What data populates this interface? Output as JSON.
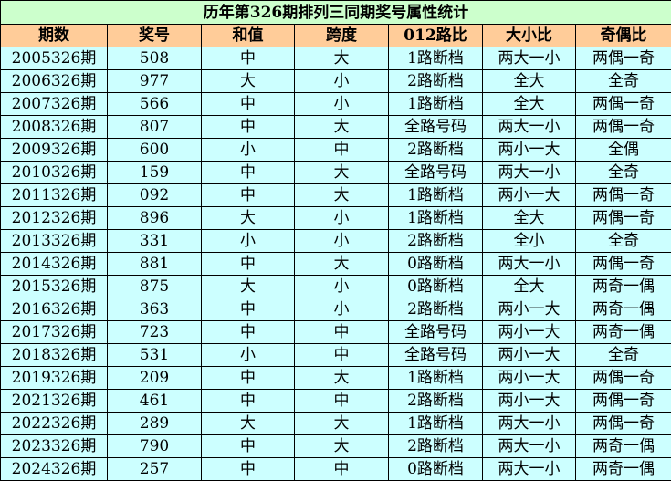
{
  "title": "历年第326期排列三同期奖号属性统计",
  "headers": [
    "期数",
    "奖号",
    "和值",
    "跨度",
    "012路比",
    "大小比",
    "奇偶比"
  ],
  "rows": [
    [
      "2005326期",
      "508",
      "中",
      "大",
      "1路断档",
      "两大一小",
      "两偶一奇"
    ],
    [
      "2006326期",
      "977",
      "大",
      "小",
      "2路断档",
      "全大",
      "全奇"
    ],
    [
      "2007326期",
      "566",
      "中",
      "小",
      "1路断档",
      "全大",
      "两偶一奇"
    ],
    [
      "2008326期",
      "807",
      "中",
      "大",
      "全路号码",
      "两大一小",
      "两偶一奇"
    ],
    [
      "2009326期",
      "600",
      "小",
      "中",
      "2路断档",
      "两小一大",
      "全偶"
    ],
    [
      "2010326期",
      "159",
      "中",
      "大",
      "全路号码",
      "两大一小",
      "全奇"
    ],
    [
      "2011326期",
      "092",
      "中",
      "大",
      "1路断档",
      "两小一大",
      "两偶一奇"
    ],
    [
      "2012326期",
      "896",
      "大",
      "小",
      "1路断档",
      "全大",
      "两偶一奇"
    ],
    [
      "2013326期",
      "331",
      "小",
      "小",
      "2路断档",
      "全小",
      "全奇"
    ],
    [
      "2014326期",
      "881",
      "中",
      "大",
      "0路断档",
      "两大一小",
      "两偶一奇"
    ],
    [
      "2015326期",
      "875",
      "大",
      "小",
      "0路断档",
      "全大",
      "两奇一偶"
    ],
    [
      "2016326期",
      "363",
      "中",
      "小",
      "2路断档",
      "两小一大",
      "两奇一偶"
    ],
    [
      "2017326期",
      "723",
      "中",
      "中",
      "全路号码",
      "两小一大",
      "两奇一偶"
    ],
    [
      "2018326期",
      "531",
      "小",
      "中",
      "全路号码",
      "两小一大",
      "全奇"
    ],
    [
      "2019326期",
      "209",
      "中",
      "大",
      "1路断档",
      "两小一大",
      "两偶一奇"
    ],
    [
      "2021326期",
      "461",
      "中",
      "中",
      "2路断档",
      "两小一大",
      "两偶一奇"
    ],
    [
      "2022326期",
      "289",
      "大",
      "大",
      "1路断档",
      "两大一小",
      "两偶一奇"
    ],
    [
      "2023326期",
      "790",
      "中",
      "大",
      "2路断档",
      "两大一小",
      "两奇一偶"
    ],
    [
      "2024326期",
      "257",
      "中",
      "中",
      "0路断档",
      "两大一小",
      "两奇一偶"
    ]
  ],
  "colors": {
    "title_bg": "#ccffcc",
    "header_bg": "#ffcc99",
    "row_bg": "#ccffff"
  }
}
